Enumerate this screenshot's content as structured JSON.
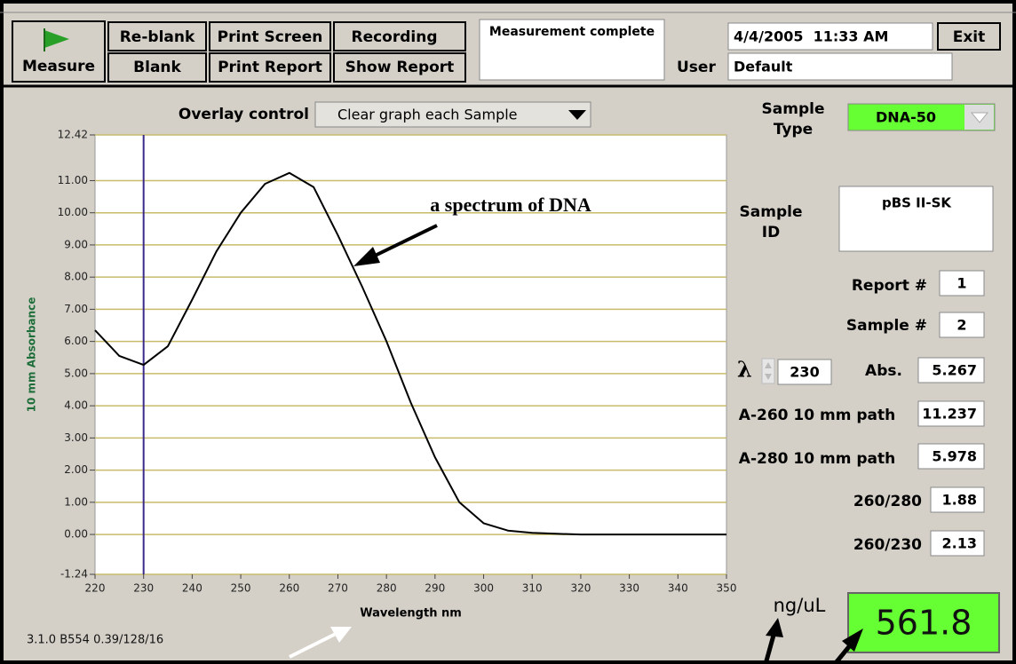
{
  "toolbar": {
    "measure": "Measure",
    "reblank": "Re-blank",
    "blank": "Blank",
    "print_screen": "Print Screen",
    "print_report": "Print Report",
    "recording": "Recording",
    "show_report": "Show Report",
    "status": "Measurement complete",
    "datetime": "4/4/2005  11:33 AM",
    "exit": "Exit",
    "user_label": "User",
    "user": "Default"
  },
  "overlay": {
    "label": "Overlay control",
    "value": "Clear graph each Sample"
  },
  "panel": {
    "sample_type_label": "Sample Type",
    "sample_type": "DNA-50",
    "sample_id_label": "Sample ID",
    "sample_id": "pBS II-SK",
    "report_label": "Report #",
    "report": "1",
    "sample_label": "Sample #",
    "sample": "2",
    "lambda_symbol": "λ",
    "lambda": "230",
    "abs_label": "Abs.",
    "abs": "5.267",
    "a260_label": "A-260 10 mm path",
    "a260": "11.237",
    "a280_label": "A-280 10 mm path",
    "a280": "5.978",
    "r260_280_label": "260/280",
    "r260_280": "1.88",
    "r260_230_label": "260/230",
    "r260_230": "2.13",
    "conc_label": "ng/uL",
    "conc": "561.8"
  },
  "version": "3.1.0 B554 0.39/128/16",
  "chart_data": {
    "type": "line",
    "xlabel": "Wavelength nm",
    "ylabel": "10 mm Absorbance",
    "annotation": "a spectrum of DNA",
    "x": [
      220,
      225,
      230,
      235,
      240,
      245,
      250,
      255,
      260,
      265,
      270,
      275,
      280,
      285,
      290,
      295,
      300,
      305,
      310,
      315,
      320,
      325,
      330,
      335,
      340,
      345,
      350
    ],
    "values": [
      6.35,
      5.55,
      5.27,
      5.85,
      7.3,
      8.8,
      10.0,
      10.9,
      11.24,
      10.8,
      9.3,
      7.7,
      6.0,
      4.1,
      2.4,
      1.0,
      0.35,
      0.12,
      0.05,
      0.02,
      0,
      0,
      0,
      0,
      0,
      0,
      0
    ],
    "color": "#000000",
    "cursor_x": 230,
    "cursor_color": "#3a2a8a",
    "xlim": [
      220,
      350
    ],
    "ylim": [
      -1.24,
      12.42
    ],
    "xticks": [
      220,
      230,
      240,
      250,
      260,
      270,
      280,
      290,
      300,
      310,
      320,
      330,
      340,
      350
    ],
    "yticks": [
      12.42,
      {
        "value": 11,
        "label": "11.00"
      },
      {
        "value": 10,
        "label": "10.00"
      },
      {
        "value": 9,
        "label": "9.00"
      },
      {
        "value": 8,
        "label": "8.00"
      },
      {
        "value": 7,
        "label": "7.00"
      },
      {
        "value": 6,
        "label": "6.00"
      },
      {
        "value": 5,
        "label": "5.00"
      },
      {
        "value": 4,
        "label": "4.00"
      },
      {
        "value": 3,
        "label": "3.00"
      },
      {
        "value": 2,
        "label": "2.00"
      },
      {
        "value": 1,
        "label": "1.00"
      },
      {
        "value": 0,
        "label": "0.00"
      },
      -1.24
    ],
    "grid": true,
    "grid_color": "#c8bc6a"
  }
}
